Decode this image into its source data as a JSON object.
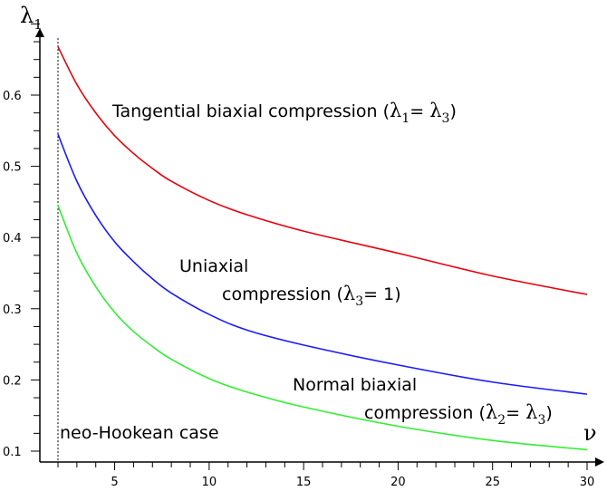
{
  "chart_data": {
    "type": "line",
    "xlabel": "ν",
    "ylabel": "λ",
    "ylabel_subscript": "1",
    "xlim": [
      2,
      30
    ],
    "ylim": [
      0.1,
      0.7
    ],
    "x_ticks": [
      5,
      10,
      15,
      20,
      25,
      30
    ],
    "y_ticks": [
      0.1,
      0.2,
      0.3,
      0.4,
      0.5,
      0.6
    ],
    "y_tick_labels": [
      "0.1",
      "0.2",
      "0.3",
      "0.4",
      "0.5",
      "0.6"
    ],
    "grid": false,
    "reference_line": {
      "x": 2,
      "style": "dotted",
      "label": "neo-Hookean case"
    },
    "series": [
      {
        "key": "tangential",
        "color": "#e8000b",
        "x": [
          2,
          3,
          4,
          5,
          6,
          7,
          8,
          10,
          12,
          15,
          20,
          25,
          30
        ],
        "values": [
          0.668,
          0.615,
          0.575,
          0.543,
          0.518,
          0.497,
          0.479,
          0.452,
          0.432,
          0.409,
          0.378,
          0.346,
          0.32
        ]
      },
      {
        "key": "uniaxial",
        "color": "#1a1aff",
        "x": [
          2,
          3,
          4,
          5,
          6,
          7,
          8,
          10,
          12,
          15,
          20,
          25,
          30
        ],
        "values": [
          0.545,
          0.479,
          0.431,
          0.394,
          0.366,
          0.342,
          0.322,
          0.292,
          0.27,
          0.249,
          0.221,
          0.197,
          0.18
        ]
      },
      {
        "key": "normal",
        "color": "#33ee33",
        "x": [
          2,
          3,
          4,
          5,
          6,
          7,
          8,
          10,
          12,
          15,
          20,
          25,
          30
        ],
        "values": [
          0.445,
          0.378,
          0.331,
          0.295,
          0.268,
          0.247,
          0.229,
          0.202,
          0.183,
          0.162,
          0.135,
          0.115,
          0.102
        ]
      }
    ],
    "annotations": {
      "tangential": {
        "text": "Tangential biaxial compression (",
        "lhs": "λ",
        "lhs_sub": "1",
        "eq": "= ",
        "rhs": "λ",
        "rhs_sub": "3",
        "close": ")"
      },
      "uniaxial": {
        "line1": "Uniaxial",
        "line2": "compression (",
        "lhs": "λ",
        "lhs_sub": "3",
        "eq": "= 1)"
      },
      "normal": {
        "line1": "Normal biaxial",
        "line2": "compression (",
        "lhs": "λ",
        "lhs_sub": "2",
        "eq": "= ",
        "rhs": "λ",
        "rhs_sub": "3",
        "close": ")"
      }
    }
  }
}
